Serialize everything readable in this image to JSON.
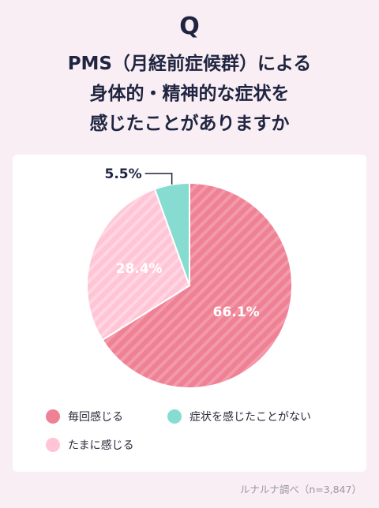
{
  "header": {
    "q_mark": "Q",
    "title_lines": [
      "PMS（月経前症候群）による",
      "身体的・精神的な症状を",
      "感じたことがありますか"
    ]
  },
  "chart_data": {
    "type": "pie",
    "slices": [
      {
        "label": "毎回感じる",
        "value": 66.1,
        "value_label": "66.1%",
        "color": "#ef8195"
      },
      {
        "label": "たまに感じる",
        "value": 28.4,
        "value_label": "28.4%",
        "color": "#ffc5d6"
      },
      {
        "label": "症状を感じたことがない",
        "value": 5.5,
        "value_label": "5.5%",
        "color": "#86dcd0"
      }
    ],
    "legend_position": "bottom"
  },
  "source": "ルナルナ調べ（n=3,847）"
}
